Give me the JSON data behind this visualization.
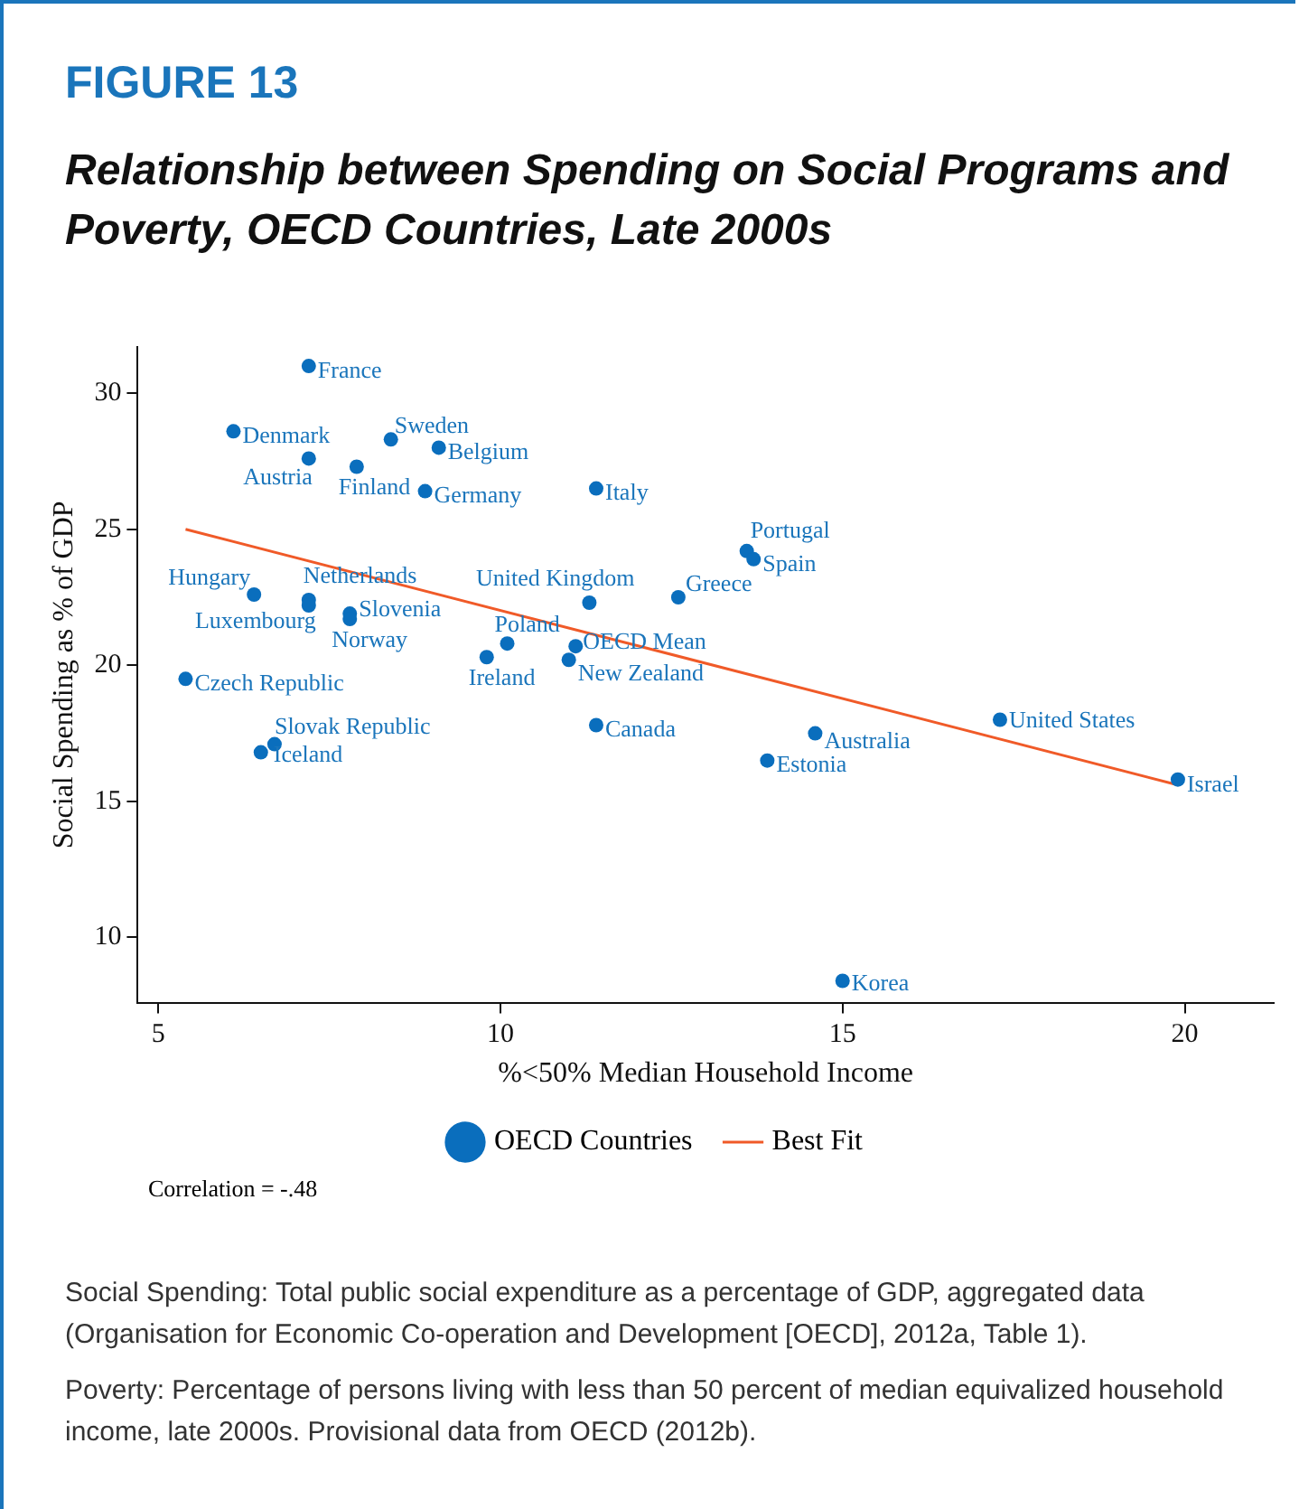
{
  "chart_data": {
    "type": "scatter",
    "title": "FIGURE 13",
    "subtitle": "Relationship between Spending on Social Programs and Poverty, OECD Countries, Late 2000s",
    "xlabel": "%<50% Median Household Income",
    "ylabel": "Social Spending as % of GDP",
    "xlim": [
      4.7,
      21.3
    ],
    "xticks": [
      5,
      10,
      15,
      20
    ],
    "ylim": [
      7.6,
      31.7
    ],
    "yticks": [
      10,
      15,
      20,
      25,
      30
    ],
    "grid": false,
    "legend": "bottom",
    "marker": "circle",
    "series": [
      {
        "name": "OECD Countries",
        "color": "#0a6ebd",
        "x": [
          7.2,
          6.1,
          7.2,
          7.9,
          8.4,
          9.1,
          8.9,
          11.4,
          6.4,
          7.2,
          7.2,
          7.8,
          7.8,
          5.4,
          6.7,
          6.5,
          11.3,
          10.1,
          9.8,
          11.1,
          11.0,
          11.4,
          12.6,
          13.6,
          13.7,
          14.6,
          13.9,
          17.3,
          19.9,
          15.0
        ],
        "values": [
          31.0,
          28.6,
          27.6,
          27.3,
          28.3,
          28.0,
          26.4,
          26.5,
          22.6,
          22.4,
          22.2,
          21.9,
          21.7,
          19.5,
          17.1,
          16.8,
          22.3,
          20.8,
          20.3,
          20.7,
          20.2,
          17.8,
          22.5,
          24.2,
          23.9,
          17.5,
          16.5,
          18.0,
          15.8,
          8.4
        ]
      },
      {
        "name": "Best Fit",
        "type": "line",
        "color": "#f05a28",
        "x": [
          5.4,
          19.9
        ],
        "values": [
          25.0,
          15.6
        ],
        "marker": "none"
      }
    ],
    "annotations": [
      {
        "text": "France",
        "x": 7.2,
        "y": 31.0
      },
      {
        "text": "Denmark",
        "x": 6.1,
        "y": 28.6
      },
      {
        "text": "Austria",
        "x": 7.2,
        "y": 27.6
      },
      {
        "text": "Finland",
        "x": 7.9,
        "y": 27.3
      },
      {
        "text": "Sweden",
        "x": 8.4,
        "y": 28.3
      },
      {
        "text": "Belgium",
        "x": 9.1,
        "y": 28.0
      },
      {
        "text": "Germany",
        "x": 8.9,
        "y": 26.4
      },
      {
        "text": "Italy",
        "x": 11.4,
        "y": 26.5
      },
      {
        "text": "Hungary",
        "x": 6.4,
        "y": 22.6
      },
      {
        "text": "Netherlands",
        "x": 7.2,
        "y": 22.4
      },
      {
        "text": "Luxembourg",
        "x": 7.2,
        "y": 22.2
      },
      {
        "text": "Slovenia",
        "x": 7.8,
        "y": 21.9
      },
      {
        "text": "Norway",
        "x": 7.8,
        "y": 21.7
      },
      {
        "text": "Czech Republic",
        "x": 5.4,
        "y": 19.5
      },
      {
        "text": "Slovak Republic",
        "x": 6.7,
        "y": 17.1
      },
      {
        "text": "Iceland",
        "x": 6.5,
        "y": 16.8
      },
      {
        "text": "United Kingdom",
        "x": 11.3,
        "y": 22.3
      },
      {
        "text": "Poland",
        "x": 10.1,
        "y": 20.8
      },
      {
        "text": "Ireland",
        "x": 9.8,
        "y": 20.3
      },
      {
        "text": "OECD Mean",
        "x": 11.1,
        "y": 20.7
      },
      {
        "text": "New Zealand",
        "x": 11.0,
        "y": 20.2
      },
      {
        "text": "Canada",
        "x": 11.4,
        "y": 17.8
      },
      {
        "text": "Greece",
        "x": 12.6,
        "y": 22.5
      },
      {
        "text": "Portugal",
        "x": 13.6,
        "y": 24.2
      },
      {
        "text": "Spain",
        "x": 13.7,
        "y": 23.9
      },
      {
        "text": "Australia",
        "x": 14.6,
        "y": 17.5
      },
      {
        "text": "Estonia",
        "x": 13.9,
        "y": 16.5
      },
      {
        "text": "United States",
        "x": 17.3,
        "y": 18.0
      },
      {
        "text": "Israel",
        "x": 19.9,
        "y": 15.8
      },
      {
        "text": "Korea",
        "x": 15.0,
        "y": 8.4
      },
      "Correlation = -.48",
      "Social Spending: Total public social expenditure as a percentage of GDP, aggregated data (Organisation for Economic Co-operation and Development [OECD], 2012a, Table 1).",
      "Poverty: Percentage of persons living with less than 50 percent of median equivalized household income, late 2000s. Provisional data from OECD (2012b)."
    ]
  }
}
